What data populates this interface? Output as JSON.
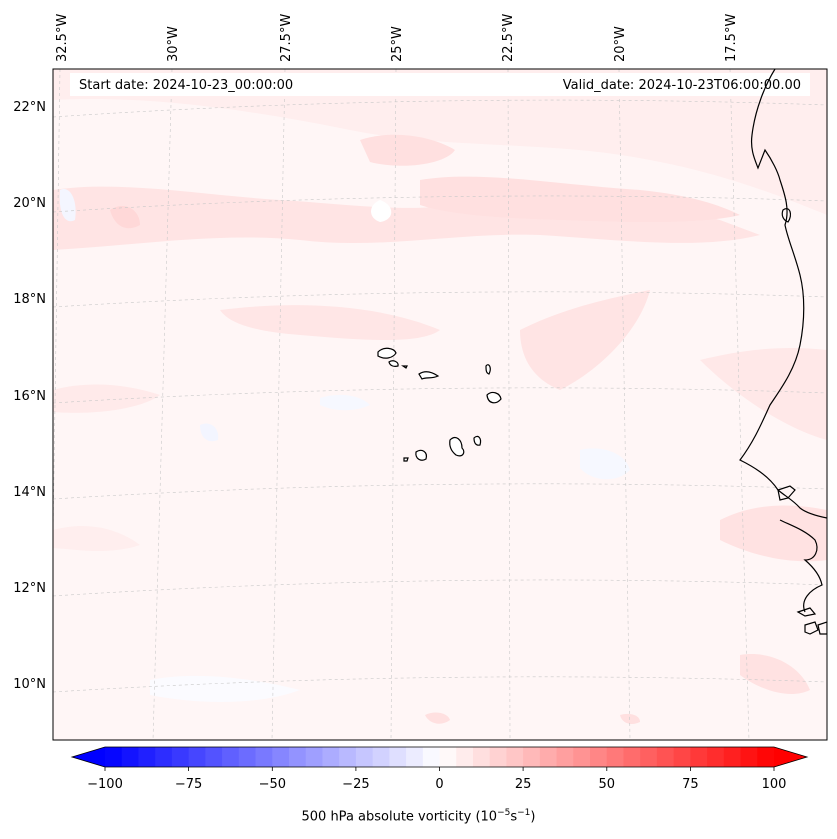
{
  "map": {
    "lon_labels": [
      "32.5°W",
      "30°W",
      "27.5°W",
      "25°W",
      "22.5°W",
      "20°W",
      "17.5°W"
    ],
    "lat_labels": [
      "22°N",
      "20°N",
      "18°N",
      "16°N",
      "14°N",
      "12°N",
      "10°N"
    ],
    "start_date": "Start date: 2024-10-23_00:00:00",
    "valid_date": "Valid_date: 2024-10-23T06:00:00.00",
    "field": "500 hPa absolute vorticity",
    "gridlines": true,
    "features": [
      "Cabo Verde islands",
      "West Africa coastline"
    ]
  },
  "colorbar": {
    "ticks": [
      "−100",
      "−75",
      "−50",
      "−25",
      "0",
      "25",
      "50",
      "75",
      "100"
    ],
    "min": -100,
    "max": 100,
    "colormap": "bwr",
    "extend": "both",
    "label_main": "500 hPa absolute vorticity (10",
    "label_exp1": "−5",
    "label_mid": "s",
    "label_exp2": "−1",
    "label_end": ")"
  },
  "colors": {
    "negative": "#0000ff",
    "neutral": "#ffffff",
    "positive": "#ff0000",
    "coastline": "#000000",
    "grid": "#bbbbbb"
  }
}
